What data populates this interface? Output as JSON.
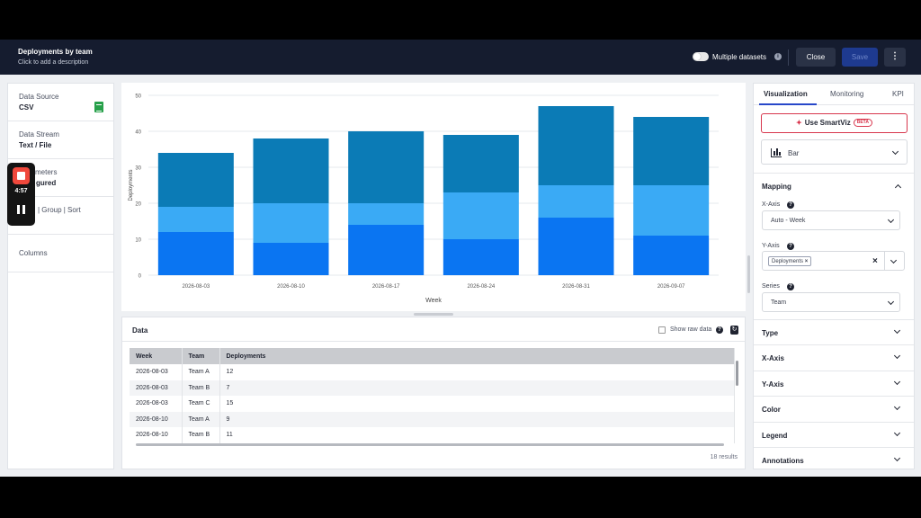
{
  "header": {
    "title": "Deployments by team",
    "description": "Click to add a description",
    "multiple_datasets_label": "Multiple datasets",
    "info_icon": "info-icon",
    "close_label": "Close",
    "save_label": "Save",
    "more_icon": "⋮"
  },
  "recorder": {
    "time": "4:57"
  },
  "left_panel": {
    "items": [
      {
        "label": "Data Source",
        "value": "CSV"
      },
      {
        "label": "Data Stream",
        "value": "Text / File"
      },
      {
        "label": "meters",
        "value": "gured"
      },
      {
        "label": "| Group | Sort",
        "value": ""
      },
      {
        "label": "Columns",
        "value": ""
      }
    ]
  },
  "chart_data": {
    "type": "bar",
    "stacked": true,
    "categories": [
      "2026-08-03",
      "2026-08-10",
      "2026-08-17",
      "2026-08-24",
      "2026-08-31",
      "2026-09-07"
    ],
    "series": [
      {
        "values": [
          12,
          9,
          14,
          10,
          16,
          11
        ],
        "color": "#0a75f2"
      },
      {
        "values": [
          7,
          11,
          6,
          13,
          9,
          14
        ],
        "color": "#3aaaf5"
      },
      {
        "values": [
          15,
          18,
          20,
          16,
          22,
          19
        ],
        "color": "#0b7bb6"
      }
    ],
    "xlabel": "Week",
    "ylabel": "Deployments",
    "ylim": [
      0,
      50
    ],
    "yticks": [
      "0",
      "10",
      "20",
      "30",
      "40",
      "50"
    ],
    "grid": true
  },
  "data_panel": {
    "title": "Data",
    "show_raw_label": "Show raw data",
    "columns": [
      "Week",
      "Team",
      "Deployments"
    ],
    "rows": [
      [
        "2026-08-03",
        "Team A",
        "12"
      ],
      [
        "2026-08-03",
        "Team B",
        "7"
      ],
      [
        "2026-08-03",
        "Team C",
        "15"
      ],
      [
        "2026-08-10",
        "Team A",
        "9"
      ],
      [
        "2026-08-10",
        "Team B",
        "11"
      ]
    ],
    "results": "18 results"
  },
  "right_panel": {
    "tabs": [
      "Visualization",
      "Monitoring",
      "KPI"
    ],
    "smartviz_label": "Use SmartViz",
    "beta": "BETA",
    "chart_type": "Bar",
    "mapping_title": "Mapping",
    "x_axis_label": "X-Axis",
    "x_axis_value": "Auto - Week",
    "y_axis_label": "Y-Axis",
    "y_axis_chip": "Deployments",
    "series_label": "Series",
    "series_value": "Team",
    "sections": [
      "Type",
      "X-Axis",
      "Y-Axis",
      "Color",
      "Legend",
      "Annotations"
    ]
  }
}
